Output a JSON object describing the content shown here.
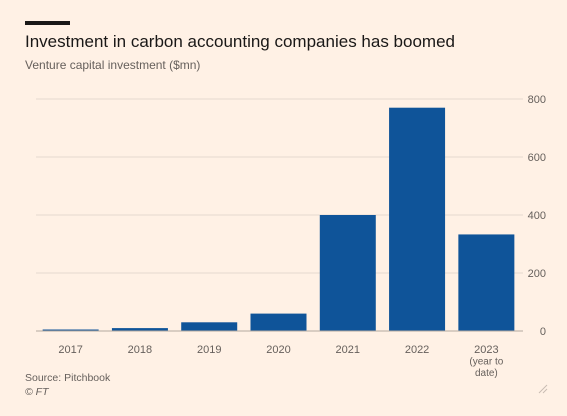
{
  "header": {
    "title": "Investment in carbon accounting companies has boomed",
    "subtitle": "Venture capital investment ($mn)"
  },
  "footer": {
    "source": "Source: Pitchbook",
    "copyright": "© FT"
  },
  "colors": {
    "bar": "#0f5499",
    "grid": "#e6d9ce",
    "text": "#66605c",
    "background": "#fff1e5"
  },
  "chart_data": {
    "type": "bar",
    "categories": [
      "2017",
      "2018",
      "2019",
      "2020",
      "2021",
      "2022",
      "2023 (year to date)"
    ],
    "category_lines": [
      [
        "2017"
      ],
      [
        "2018"
      ],
      [
        "2019"
      ],
      [
        "2020"
      ],
      [
        "2021"
      ],
      [
        "2022"
      ],
      [
        "2023",
        "(year to",
        "date)"
      ]
    ],
    "values": [
      4,
      10,
      30,
      60,
      400,
      770,
      333
    ],
    "title": "Investment in carbon accounting companies has boomed",
    "ylabel": "Venture capital investment ($mn)",
    "ylim": [
      0,
      800
    ],
    "yticks": [
      0,
      200,
      400,
      600,
      800
    ],
    "y_axis_side": "right",
    "grid": true,
    "legend": "none"
  }
}
